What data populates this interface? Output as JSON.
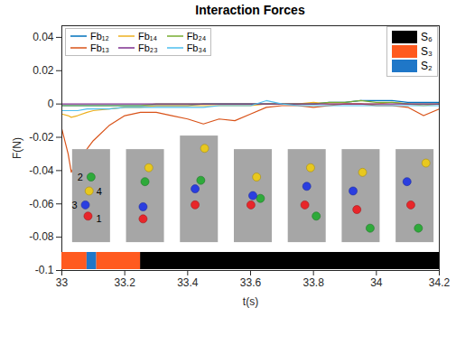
{
  "chart_data": {
    "type": "line",
    "title": "Interaction Forces",
    "xlabel": "t(s)",
    "ylabel": "F(N)",
    "xlim": [
      33,
      34.2
    ],
    "xticks": [
      33,
      33.2,
      33.4,
      33.6,
      33.8,
      34,
      34.2
    ],
    "ylim": [
      -0.1,
      0.047
    ],
    "yticks": [
      -0.1,
      -0.08,
      -0.06,
      -0.04,
      -0.02,
      0,
      0.02,
      0.04
    ],
    "grid": false,
    "legend": "top-left",
    "x": [
      33,
      33.02,
      33.03,
      33.05,
      33.08,
      33.1,
      33.15,
      33.2,
      33.25,
      33.3,
      33.35,
      33.4,
      33.45,
      33.5,
      33.55,
      33.6,
      33.65,
      33.7,
      33.75,
      33.8,
      33.85,
      33.9,
      33.95,
      34,
      34.05,
      34.1,
      34.15,
      34.2
    ],
    "series": [
      {
        "name": "Fb₁₂",
        "color": "#0072bd",
        "values": [
          -0.001,
          -0.001,
          -0.001,
          -0.001,
          -0.001,
          -0.001,
          -0.001,
          -0.001,
          -0.001,
          -0.001,
          -0.001,
          -0.001,
          0,
          0,
          0,
          0,
          0,
          0,
          0,
          0,
          0.001,
          0.001,
          0.002,
          0.002,
          0.002,
          0.001,
          0.001,
          0.001
        ]
      },
      {
        "name": "Fb₁₄",
        "color": "#edb120",
        "values": [
          -0.006,
          -0.007,
          -0.008,
          -0.007,
          -0.005,
          -0.004,
          -0.003,
          -0.002,
          -0.002,
          -0.001,
          -0.001,
          -0.001,
          -0.001,
          -0.001,
          -0.001,
          -0.001,
          0,
          0,
          0,
          0.001,
          0,
          0,
          0,
          0,
          0.001,
          0,
          -0.001,
          0
        ]
      },
      {
        "name": "Fb₂₄",
        "color": "#77ac30",
        "values": [
          -0.001,
          -0.001,
          -0.001,
          -0.001,
          -0.001,
          -0.001,
          -0.001,
          -0.001,
          -0.001,
          0,
          0,
          0,
          0,
          0,
          0,
          0,
          0,
          0,
          0,
          0,
          0.001,
          0.001,
          0.002,
          0.001,
          0.001,
          0,
          0,
          0
        ]
      },
      {
        "name": "Fb₁₃",
        "color": "#d95319",
        "values": [
          -0.015,
          -0.03,
          -0.041,
          -0.033,
          -0.027,
          -0.022,
          -0.013,
          -0.007,
          -0.005,
          -0.005,
          -0.007,
          -0.009,
          -0.012,
          -0.009,
          -0.01,
          -0.006,
          -0.002,
          -0.001,
          -0.001,
          -0.002,
          -0.001,
          0,
          0,
          -0.001,
          -0.001,
          -0.002,
          -0.007,
          -0.003
        ]
      },
      {
        "name": "Fb₂₃",
        "color": "#7e2f8e",
        "values": [
          0,
          0,
          0,
          0,
          0,
          0,
          0,
          0,
          0,
          0,
          0,
          0,
          0,
          0,
          0,
          0,
          0,
          0,
          0,
          0,
          0,
          0,
          0,
          0,
          0,
          0,
          0,
          0
        ]
      },
      {
        "name": "Fb₃₄",
        "color": "#4dbeee",
        "values": [
          -0.004,
          -0.004,
          -0.004,
          -0.004,
          -0.003,
          -0.003,
          -0.003,
          -0.002,
          -0.002,
          -0.002,
          -0.002,
          -0.002,
          -0.002,
          -0.001,
          -0.001,
          -0.001,
          0.002,
          0,
          -0.001,
          -0.001,
          -0.001,
          -0.001,
          -0.001,
          -0.001,
          -0.001,
          -0.001,
          -0.001,
          -0.001
        ]
      }
    ],
    "states": [
      {
        "name": "S₆",
        "color": "#000000",
        "segments": [
          [
            33.25,
            34.2
          ]
        ]
      },
      {
        "name": "S₃",
        "color": "#ff5a1f",
        "segments": [
          [
            33,
            33.08
          ],
          [
            33.11,
            33.25
          ]
        ]
      },
      {
        "name": "S₂",
        "color": "#1f77c8",
        "segments": [
          [
            33.08,
            33.11
          ]
        ]
      }
    ],
    "insets": {
      "balls": [
        {
          "label": "1",
          "color": "#e8262a"
        },
        {
          "label": "2",
          "color": "#2eaa3a"
        },
        {
          "label": "3",
          "color": "#2a3ee0"
        },
        {
          "label": "4",
          "color": "#e8c81e"
        }
      ]
    }
  }
}
